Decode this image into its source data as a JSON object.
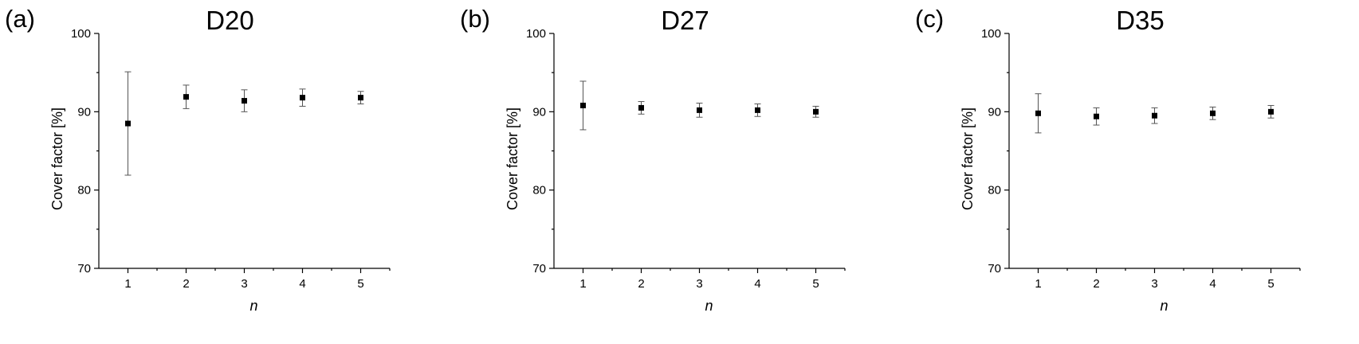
{
  "chart_data": [
    {
      "type": "scatter",
      "panel_label": "(a)",
      "title": "D20",
      "xlabel": "n",
      "ylabel": "Cover factor [%]",
      "x": [
        1,
        2,
        3,
        4,
        5
      ],
      "y": [
        88.5,
        91.9,
        91.4,
        91.8,
        91.8
      ],
      "yerr": [
        6.6,
        1.5,
        1.4,
        1.1,
        0.8
      ],
      "xlim": [
        0.5,
        5.5
      ],
      "ylim": [
        70,
        100
      ],
      "xticks": [
        "1",
        "2",
        "3",
        "4",
        "5"
      ],
      "yticks": [
        "70",
        "80",
        "90",
        "100"
      ],
      "grid": false,
      "marker": "square",
      "color": "#000000"
    },
    {
      "type": "scatter",
      "panel_label": "(b)",
      "title": "D27",
      "xlabel": "n",
      "ylabel": "Cover factor [%]",
      "x": [
        1,
        2,
        3,
        4,
        5
      ],
      "y": [
        90.8,
        90.5,
        90.2,
        90.2,
        90.0
      ],
      "yerr": [
        3.1,
        0.8,
        0.9,
        0.8,
        0.7
      ],
      "xlim": [
        0.5,
        5.5
      ],
      "ylim": [
        70,
        100
      ],
      "xticks": [
        "1",
        "2",
        "3",
        "4",
        "5"
      ],
      "yticks": [
        "70",
        "80",
        "90",
        "100"
      ],
      "grid": false,
      "marker": "square",
      "color": "#000000"
    },
    {
      "type": "scatter",
      "panel_label": "(c)",
      "title": "D35",
      "xlabel": "n",
      "ylabel": "Cover factor [%]",
      "x": [
        1,
        2,
        3,
        4,
        5
      ],
      "y": [
        89.8,
        89.4,
        89.5,
        89.8,
        90.0
      ],
      "yerr": [
        2.5,
        1.1,
        1.0,
        0.8,
        0.8
      ],
      "xlim": [
        0.5,
        5.5
      ],
      "ylim": [
        70,
        100
      ],
      "xticks": [
        "1",
        "2",
        "3",
        "4",
        "5"
      ],
      "yticks": [
        "70",
        "80",
        "90",
        "100"
      ],
      "grid": false,
      "marker": "square",
      "color": "#000000"
    }
  ]
}
